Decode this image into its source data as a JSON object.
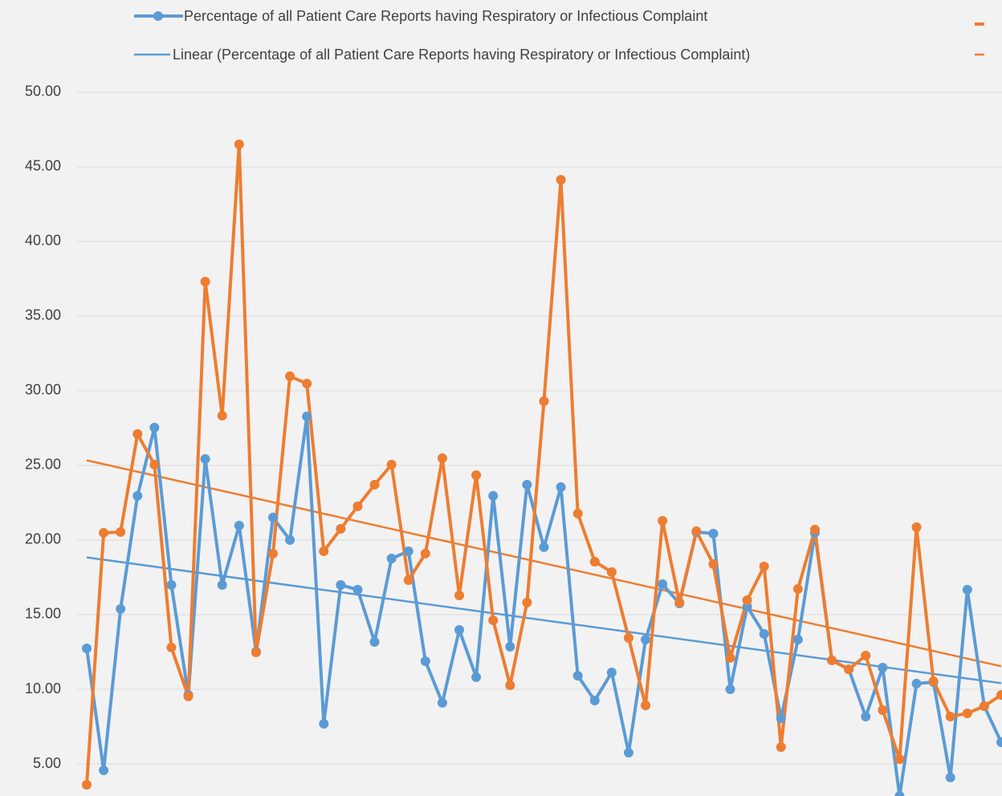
{
  "chart_data": {
    "type": "line",
    "series": [
      {
        "name": "Percentage of all Patient Care Reports having Respiratory or Infectious Complaint",
        "color": "#5b9bd5",
        "values": [
          12.74,
          4.57,
          15.38,
          22.96,
          27.53,
          16.99,
          9.62,
          25.43,
          16.99,
          20.97,
          12.53,
          21.51,
          20.0,
          28.28,
          7.69,
          16.99,
          16.67,
          13.17,
          18.76,
          19.25,
          11.88,
          9.09,
          13.98,
          10.81,
          22.96,
          12.85,
          23.71,
          19.52,
          23.55,
          10.91,
          9.25,
          11.13,
          5.75,
          13.33,
          17.04,
          15.75,
          20.54,
          20.43,
          10.0,
          15.54,
          13.71,
          8.06,
          13.33,
          20.48,
          11.94,
          11.34,
          8.17,
          11.45,
          2.85,
          10.38,
          10.48,
          4.09,
          16.67,
          8.87,
          6.45
        ]
      },
      {
        "color": "#ed7d31",
        "values": [
          3.6,
          20.48,
          20.54,
          27.1,
          25.05,
          12.8,
          9.52,
          37.31,
          28.33,
          46.51,
          12.47,
          19.09,
          30.97,
          30.48,
          19.25,
          20.75,
          22.26,
          23.71,
          25.05,
          17.31,
          19.09,
          25.48,
          16.29,
          24.35,
          14.62,
          10.27,
          15.81,
          29.3,
          44.14,
          21.77,
          18.55,
          17.85,
          13.44,
          8.92,
          21.29,
          15.81,
          20.59,
          18.39,
          12.1,
          15.97,
          18.23,
          6.13,
          16.72,
          20.7,
          11.94,
          11.34,
          12.26,
          8.6,
          5.32,
          20.86,
          10.54,
          8.17,
          8.39,
          8.87,
          9.62
        ]
      }
    ],
    "trendline_legend": "Linear (Percentage of all Patient Care Reports having Respiratory or Infectious Complaint)",
    "trendline": "linear",
    "ylim": [
      2.85,
      56.18
    ],
    "yticks": [
      {
        "value": 5,
        "label": "5.00"
      },
      {
        "value": 10,
        "label": "10.00"
      },
      {
        "value": 15,
        "label": "15.00"
      },
      {
        "value": 20,
        "label": "20.00"
      },
      {
        "value": 25,
        "label": "25.00"
      },
      {
        "value": 30,
        "label": "30.00"
      },
      {
        "value": 35,
        "label": "35.00"
      },
      {
        "value": 40,
        "label": "40.00"
      },
      {
        "value": 45,
        "label": "45.00"
      },
      {
        "value": 50,
        "label": "50.00"
      }
    ],
    "grid": true
  }
}
